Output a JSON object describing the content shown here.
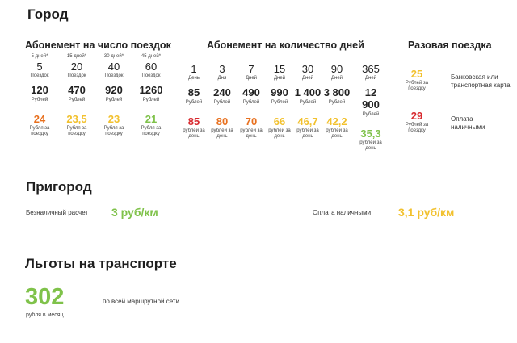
{
  "city": {
    "title": "Город",
    "trips": {
      "title": "Абонемент на число поездок",
      "items": [
        {
          "days": "5 дней*",
          "count": "5",
          "count_unit": "Поездок",
          "price": "120",
          "price_unit": "Рублей",
          "per": "24",
          "per_unit": "Рубля за поездку",
          "color": "#e8701e"
        },
        {
          "days": "15 дней*",
          "count": "20",
          "count_unit": "Поездок",
          "price": "470",
          "price_unit": "Рублей",
          "per": "23,5",
          "per_unit": "Рубля за поездку",
          "color": "#f2c12e"
        },
        {
          "days": "30 дней*",
          "count": "40",
          "count_unit": "Поездок",
          "price": "920",
          "price_unit": "Рублей",
          "per": "23",
          "per_unit": "Рубля за поездку",
          "color": "#f2c12e"
        },
        {
          "days": "45 дней*",
          "count": "60",
          "count_unit": "Поездок",
          "price": "1260",
          "price_unit": "Рублей",
          "per": "21",
          "per_unit": "Рубля за поездку",
          "color": "#7fc24a"
        }
      ]
    },
    "days": {
      "title": "Абонемент на количество дней",
      "items": [
        {
          "count": "1",
          "count_unit": "День",
          "price": "85",
          "price_unit": "Рублей",
          "per": "85",
          "per_unit": "рублей за день",
          "color": "#d82a2f"
        },
        {
          "count": "3",
          "count_unit": "Дня",
          "price": "240",
          "price_unit": "Рублей",
          "per": "80",
          "per_unit": "рублей за день",
          "color": "#e8701e"
        },
        {
          "count": "7",
          "count_unit": "Дней",
          "price": "490",
          "price_unit": "Рублей",
          "per": "70",
          "per_unit": "рублей за день",
          "color": "#e8701e"
        },
        {
          "count": "15",
          "count_unit": "Дней",
          "price": "990",
          "price_unit": "Рублей",
          "per": "66",
          "per_unit": "рублей за день",
          "color": "#f2c12e"
        },
        {
          "count": "30",
          "count_unit": "Дней",
          "price": "1 400",
          "price_unit": "Рублей",
          "per": "46,7",
          "per_unit": "рублей за день",
          "color": "#f2c12e"
        },
        {
          "count": "90",
          "count_unit": "Дней",
          "price": "3 800",
          "price_unit": "Рублей",
          "per": "42,2",
          "per_unit": "рублей за день",
          "color": "#f2c12e"
        },
        {
          "count": "365",
          "count_unit": "Дней",
          "price": "12 900",
          "price_unit": "Рублей",
          "per": "35,3",
          "per_unit": "рублей за день",
          "color": "#7fc24a"
        }
      ]
    },
    "single": {
      "title": "Разовая поездка",
      "items": [
        {
          "price": "25",
          "unit": "Рублей за поездку",
          "label": "Банковская или транспортная карта",
          "color": "#f2c12e"
        },
        {
          "price": "29",
          "unit": "Рублей за поездку",
          "label": "Оплата наличными",
          "color": "#d82a2f"
        }
      ]
    }
  },
  "suburb": {
    "title": "Пригород",
    "cashless_label": "Безналичный расчет",
    "cashless_price": "3 руб/км",
    "cashless_color": "#7fc24a",
    "cash_label": "Оплата наличными",
    "cash_price": "3,1 руб/км",
    "cash_color": "#f2c12e"
  },
  "benefits": {
    "title": "Льготы на транспорте",
    "price": "302",
    "price_unit": "рубля в месяц",
    "note": "по всей маршрутной сети",
    "color": "#7fc24a"
  }
}
